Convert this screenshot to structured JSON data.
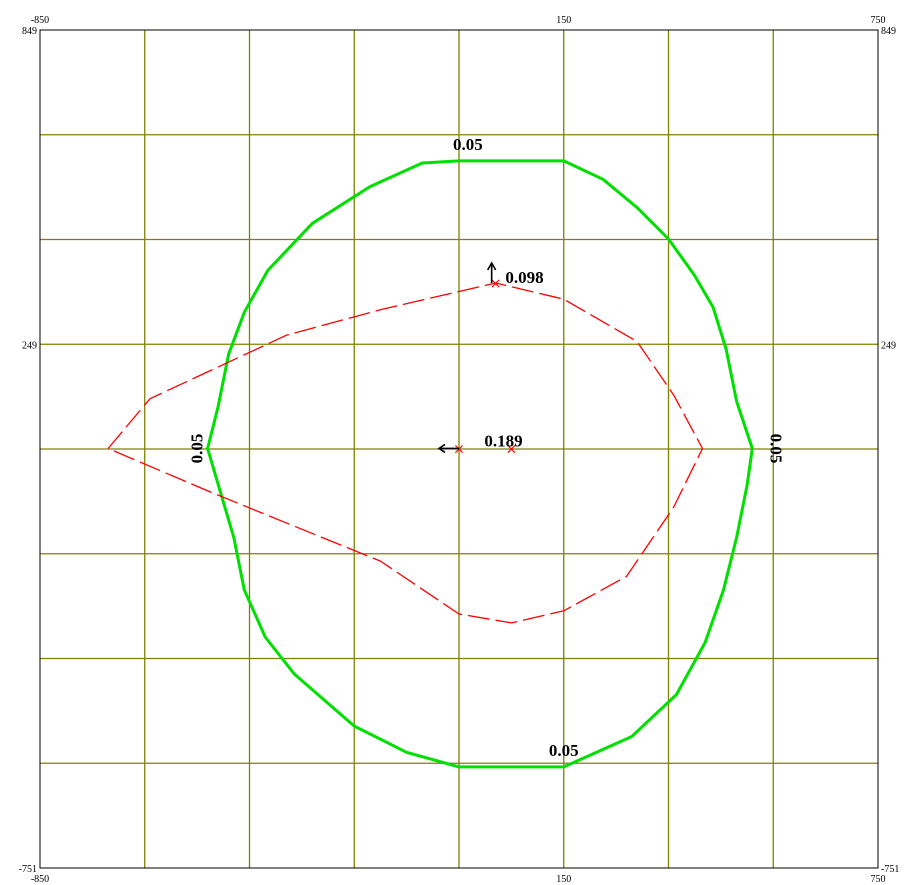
{
  "chart_data": {
    "type": "line",
    "title": "",
    "xlabel": "",
    "ylabel": "",
    "xlim": [
      -850,
      750
    ],
    "ylim": [
      -751,
      849
    ],
    "grid": true,
    "grid_color": "#808000",
    "x_ticks": {
      "top": [
        "-850",
        "150",
        "750"
      ],
      "bottom": [
        "-850",
        "150",
        "750"
      ]
    },
    "y_ticks": {
      "left": [
        "849",
        "249",
        "-751"
      ],
      "right": [
        "849",
        "249",
        "-751"
      ]
    },
    "series": [
      {
        "color": "#00e000",
        "style": "solid",
        "points": [
          [
            -50,
            599
          ],
          [
            150,
            599
          ],
          [
            225,
            564
          ],
          [
            290,
            510
          ],
          [
            350,
            450
          ],
          [
            400,
            380
          ],
          [
            435,
            320
          ],
          [
            460,
            240
          ],
          [
            480,
            140
          ],
          [
            510,
            50
          ],
          [
            500,
            -20
          ],
          [
            480,
            -120
          ],
          [
            455,
            -220
          ],
          [
            420,
            -320
          ],
          [
            365,
            -420
          ],
          [
            280,
            -500
          ],
          [
            150,
            -558
          ],
          [
            -50,
            -558
          ],
          [
            -150,
            -530
          ],
          [
            -250,
            -480
          ],
          [
            -365,
            -380
          ],
          [
            -420,
            -310
          ],
          [
            -460,
            -220
          ],
          [
            -480,
            -120
          ],
          [
            -530,
            50
          ],
          [
            -510,
            130
          ],
          [
            -490,
            230
          ],
          [
            -460,
            310
          ],
          [
            -415,
            390
          ],
          [
            -330,
            480
          ],
          [
            -220,
            550
          ],
          [
            -120,
            595
          ],
          [
            -50,
            599
          ]
        ]
      },
      {
        "color": "#ff0000",
        "style": "dashed",
        "points": [
          [
            -720,
            50
          ],
          [
            -640,
            145
          ],
          [
            -380,
            266
          ],
          [
            -200,
            315
          ],
          [
            20,
            366
          ],
          [
            150,
            335
          ],
          [
            290,
            254
          ],
          [
            360,
            152
          ],
          [
            415,
            50
          ],
          [
            360,
            -62
          ],
          [
            270,
            -194
          ],
          [
            150,
            -260
          ],
          [
            50,
            -283
          ],
          [
            -50,
            -266
          ],
          [
            -200,
            -165
          ],
          [
            -385,
            -90
          ],
          [
            -520,
            -35
          ],
          [
            -720,
            50
          ]
        ]
      }
    ],
    "markers": [
      {
        "symbol": "×",
        "color": "#ff0000",
        "x": -50,
        "y": 50
      },
      {
        "symbol": "×",
        "color": "#ff0000",
        "x": 50,
        "y": 50
      },
      {
        "symbol": "×",
        "color": "#ff0000",
        "x": 20,
        "y": 366
      }
    ],
    "annotations": [
      {
        "text": "0.05",
        "x": -33,
        "y": 620,
        "rotate": 0
      },
      {
        "text": "0.05",
        "x": 150,
        "y": -537,
        "rotate": 0
      },
      {
        "text": "0.05",
        "x": -540,
        "y": 50,
        "rotate": -90
      },
      {
        "text": "0.05",
        "x": 545,
        "y": 50,
        "rotate": 90
      },
      {
        "text": "0.098",
        "x": 75,
        "y": 366,
        "rotate": 0
      },
      {
        "text": "0.189",
        "x": 35,
        "y": 54,
        "rotate": 0
      }
    ],
    "arrows": [
      {
        "x": 20,
        "y": 366,
        "direction": "up"
      },
      {
        "x": -50,
        "y": 50,
        "direction": "left"
      }
    ]
  }
}
